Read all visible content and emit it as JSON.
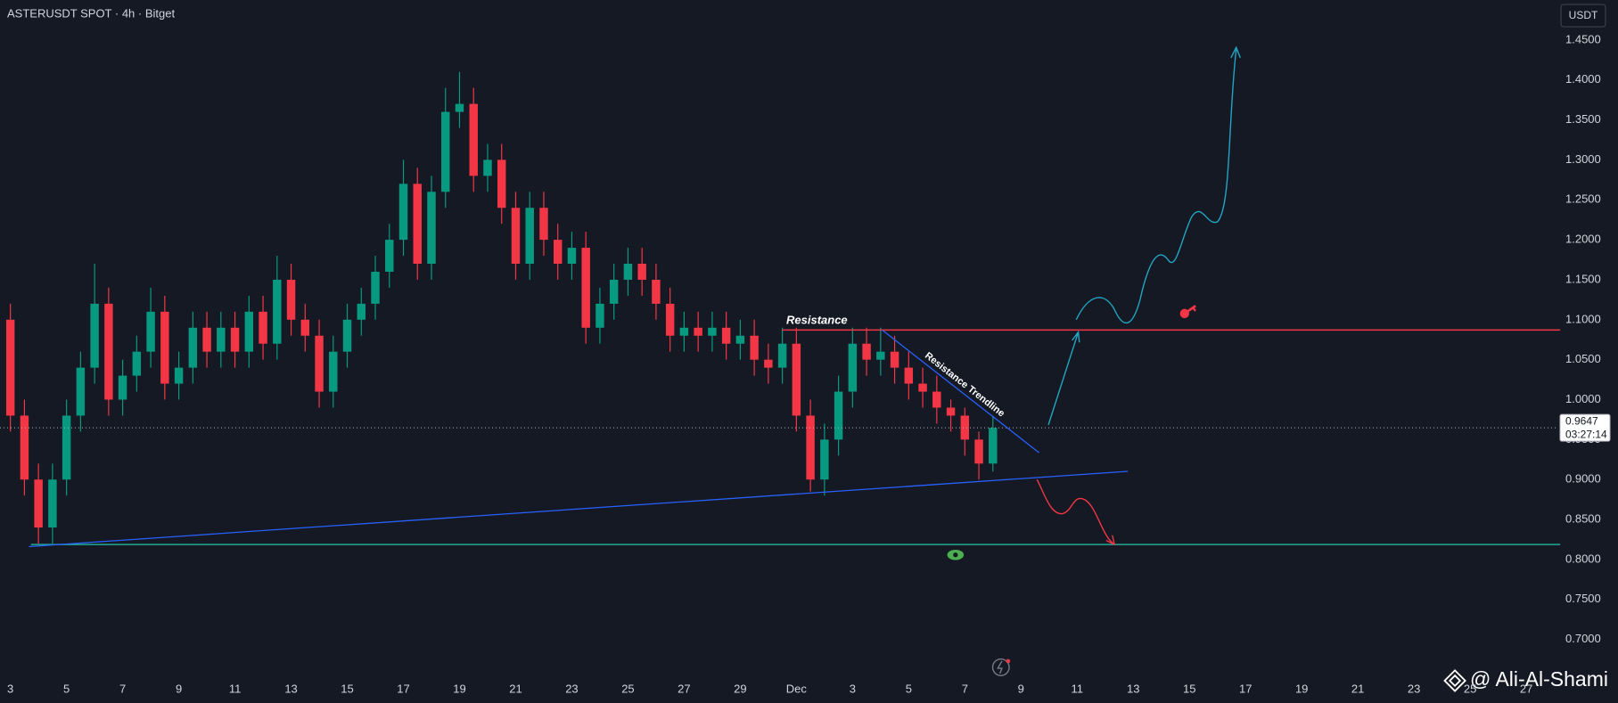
{
  "chart_data": {
    "type": "candlestick",
    "title": "ASTERUSDT SPOT · 4h · Bitget",
    "currency": "USDT",
    "countdown": "03:27:14",
    "watermark": "@ Ali-Al-Shami",
    "annotations": [
      "Resistance",
      "Resistance Trendline"
    ],
    "up_color": "#089981",
    "down_color": "#f23645",
    "x": [
      0,
      0.5,
      1,
      1.5,
      2,
      2.5,
      3,
      3.5,
      4,
      4.5,
      5,
      5.5,
      6,
      6.5,
      7,
      7.5,
      8,
      8.5,
      9,
      9.5,
      10,
      10.5,
      11,
      11.5,
      12,
      12.5,
      13,
      13.5,
      14,
      14.5,
      15,
      15.5,
      16,
      16.5,
      17,
      17.5,
      18,
      18.5,
      19,
      19.5,
      20,
      20.5,
      21,
      21.5,
      22,
      22.5,
      23,
      23.5,
      24,
      24.5,
      25,
      25.5,
      26,
      26.5,
      27,
      27.5,
      28,
      28.5,
      29,
      29.5,
      30,
      30.5,
      31,
      31.5,
      32,
      32.5,
      33,
      33.5,
      34,
      34.5,
      35
    ],
    "open": [
      1.1,
      0.98,
      0.9,
      0.84,
      0.9,
      0.98,
      1.04,
      1.12,
      1.0,
      1.03,
      1.06,
      1.11,
      1.02,
      1.04,
      1.09,
      1.06,
      1.09,
      1.06,
      1.11,
      1.07,
      1.15,
      1.1,
      1.08,
      1.01,
      1.06,
      1.1,
      1.12,
      1.16,
      1.2,
      1.27,
      1.17,
      1.26,
      1.36,
      1.37,
      1.28,
      1.3,
      1.24,
      1.17,
      1.24,
      1.2,
      1.17,
      1.19,
      1.09,
      1.12,
      1.15,
      1.17,
      1.15,
      1.12,
      1.08,
      1.09,
      1.08,
      1.09,
      1.07,
      1.08,
      1.05,
      1.04,
      1.07,
      0.98,
      0.9,
      0.95,
      1.01,
      1.07,
      1.05,
      1.06,
      1.04,
      1.02,
      1.01,
      0.99,
      0.98,
      0.95,
      0.92
    ],
    "high": [
      1.12,
      1.0,
      0.92,
      0.92,
      1.0,
      1.06,
      1.17,
      1.14,
      1.05,
      1.08,
      1.14,
      1.13,
      1.06,
      1.11,
      1.11,
      1.11,
      1.11,
      1.13,
      1.13,
      1.18,
      1.17,
      1.12,
      1.1,
      1.08,
      1.12,
      1.14,
      1.18,
      1.22,
      1.3,
      1.29,
      1.28,
      1.39,
      1.41,
      1.39,
      1.32,
      1.32,
      1.26,
      1.26,
      1.26,
      1.22,
      1.21,
      1.21,
      1.14,
      1.17,
      1.19,
      1.19,
      1.17,
      1.14,
      1.11,
      1.11,
      1.11,
      1.11,
      1.1,
      1.1,
      1.07,
      1.09,
      1.09,
      1.0,
      0.97,
      1.03,
      1.09,
      1.09,
      1.09,
      1.08,
      1.06,
      1.04,
      1.03,
      1.0,
      0.99,
      0.96,
      0.98
    ],
    "low": [
      0.96,
      0.88,
      0.82,
      0.82,
      0.88,
      0.96,
      1.02,
      0.98,
      0.98,
      1.01,
      1.04,
      1.0,
      1.0,
      1.02,
      1.04,
      1.04,
      1.04,
      1.04,
      1.05,
      1.05,
      1.08,
      1.06,
      0.99,
      0.99,
      1.04,
      1.08,
      1.1,
      1.14,
      1.18,
      1.15,
      1.15,
      1.24,
      1.34,
      1.26,
      1.26,
      1.22,
      1.15,
      1.15,
      1.18,
      1.15,
      1.15,
      1.07,
      1.07,
      1.1,
      1.13,
      1.13,
      1.1,
      1.06,
      1.06,
      1.06,
      1.06,
      1.05,
      1.05,
      1.03,
      1.02,
      1.02,
      0.96,
      0.885,
      0.88,
      0.93,
      0.99,
      1.03,
      1.03,
      1.02,
      1.0,
      0.99,
      0.97,
      0.96,
      0.93,
      0.9,
      0.91
    ],
    "close": [
      0.98,
      0.9,
      0.84,
      0.9,
      0.98,
      1.04,
      1.12,
      1.0,
      1.03,
      1.06,
      1.11,
      1.02,
      1.04,
      1.09,
      1.06,
      1.09,
      1.06,
      1.11,
      1.07,
      1.15,
      1.1,
      1.08,
      1.01,
      1.06,
      1.1,
      1.12,
      1.16,
      1.2,
      1.27,
      1.17,
      1.26,
      1.36,
      1.37,
      1.28,
      1.3,
      1.24,
      1.17,
      1.24,
      1.2,
      1.17,
      1.19,
      1.09,
      1.12,
      1.15,
      1.17,
      1.15,
      1.12,
      1.08,
      1.09,
      1.08,
      1.09,
      1.07,
      1.08,
      1.05,
      1.04,
      1.07,
      0.98,
      0.9,
      0.95,
      1.01,
      1.07,
      1.05,
      1.06,
      1.04,
      1.02,
      1.01,
      0.99,
      0.98,
      0.95,
      0.92,
      0.9647
    ],
    "xlim": [
      -0.37,
      55.14
    ],
    "xticks": [
      {
        "value": 0,
        "label": "3"
      },
      {
        "value": 2,
        "label": "5"
      },
      {
        "value": 4,
        "label": "7"
      },
      {
        "value": 6,
        "label": "9"
      },
      {
        "value": 8,
        "label": "11"
      },
      {
        "value": 10,
        "label": "13"
      },
      {
        "value": 12,
        "label": "15"
      },
      {
        "value": 14,
        "label": "17"
      },
      {
        "value": 16,
        "label": "19"
      },
      {
        "value": 18,
        "label": "21"
      },
      {
        "value": 20,
        "label": "23"
      },
      {
        "value": 22,
        "label": "25"
      },
      {
        "value": 24,
        "label": "27"
      },
      {
        "value": 26,
        "label": "29"
      },
      {
        "value": 28,
        "label": "Dec"
      },
      {
        "value": 30,
        "label": "3"
      },
      {
        "value": 32,
        "label": "5"
      },
      {
        "value": 34,
        "label": "7"
      },
      {
        "value": 36,
        "label": "9"
      },
      {
        "value": 38,
        "label": "11"
      },
      {
        "value": 40,
        "label": "13"
      },
      {
        "value": 42,
        "label": "15"
      },
      {
        "value": 44,
        "label": "17"
      },
      {
        "value": 46,
        "label": "19"
      },
      {
        "value": 48,
        "label": "21"
      },
      {
        "value": 50,
        "label": "23"
      },
      {
        "value": 52,
        "label": "25"
      },
      {
        "value": 54,
        "label": "27"
      }
    ],
    "ylim": [
      0.655,
      1.5
    ],
    "yticks": [
      {
        "value": 0.7,
        "label": "0.7000"
      },
      {
        "value": 0.75,
        "label": "0.7500"
      },
      {
        "value": 0.8,
        "label": "0.8000"
      },
      {
        "value": 0.85,
        "label": "0.8500"
      },
      {
        "value": 0.9,
        "label": "0.9000"
      },
      {
        "value": 0.95,
        "label": "0.9500"
      },
      {
        "value": 1.0,
        "label": "1.0000"
      },
      {
        "value": 1.05,
        "label": "1.0500"
      },
      {
        "value": 1.1,
        "label": "1.1000"
      },
      {
        "value": 1.15,
        "label": "1.1500"
      },
      {
        "value": 1.2,
        "label": "1.2000"
      },
      {
        "value": 1.25,
        "label": "1.2500"
      },
      {
        "value": 1.3,
        "label": "1.3000"
      },
      {
        "value": 1.35,
        "label": "1.3500"
      },
      {
        "value": 1.4,
        "label": "1.4000"
      },
      {
        "value": 1.45,
        "label": "1.4500"
      }
    ],
    "grid": false
  }
}
